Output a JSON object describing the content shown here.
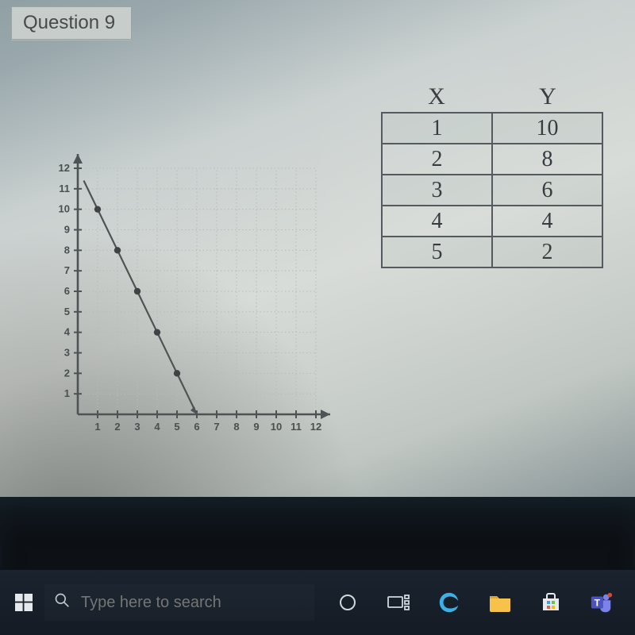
{
  "question_label": "Question 9",
  "chart": {
    "type": "line",
    "points": [
      {
        "x": 1,
        "y": 10
      },
      {
        "x": 2,
        "y": 8
      },
      {
        "x": 3,
        "y": 6
      },
      {
        "x": 4,
        "y": 4
      },
      {
        "x": 5,
        "y": 2
      }
    ],
    "xlim": [
      0,
      12
    ],
    "ylim": [
      0,
      12
    ],
    "xtick_step": 1,
    "ytick_step": 1,
    "y_label_ticks": [
      1,
      2,
      3,
      4,
      5,
      6,
      7,
      8,
      9,
      10,
      11,
      12
    ],
    "x_label_ticks": [
      1,
      2,
      3,
      4,
      5,
      6,
      7,
      8,
      9,
      10,
      11,
      12
    ],
    "point_radius": 4.2,
    "line_width": 2.2,
    "line_color": "#4e5356",
    "point_color": "#3f4346",
    "axis_color": "#4e5356",
    "axis_width": 2.6,
    "grid_color": "#b6bcb9",
    "grid_dash": "1.5 3",
    "label_fontsize": 13,
    "label_color": "#4a4f51",
    "background_color": "transparent",
    "arrowheads": true
  },
  "xy_table": {
    "columns": [
      "X",
      "Y"
    ],
    "rows": [
      [
        "1",
        "10"
      ],
      [
        "2",
        "8"
      ],
      [
        "3",
        "6"
      ],
      [
        "4",
        "4"
      ],
      [
        "5",
        "2"
      ]
    ],
    "border_color": "#555a5f",
    "text_color": "#383c41",
    "font_family": "handwritten"
  },
  "taskbar": {
    "search_placeholder": "Type here to search",
    "background_color": "#141b25",
    "icon_color": "#d0d7df"
  }
}
